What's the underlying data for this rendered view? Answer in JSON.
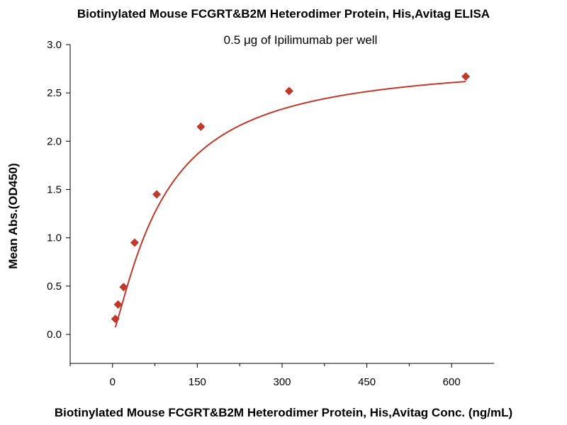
{
  "chart_data": {
    "type": "scatter",
    "title": "Biotinylated Mouse FCGRT&B2M Heterodimer Protein, His,Avitag ELISA",
    "subtitle": "0.5 μg of Ipilimumab per well",
    "xlabel": "Biotinylated Mouse FCGRT&B2M Heterodimer Protein, His,Avitag Conc. (ng/mL)",
    "ylabel": "Mean Abs.(OD450)",
    "xlim": [
      -75,
      675
    ],
    "ylim": [
      -0.3,
      3.0
    ],
    "x_ticks": [
      0,
      150,
      300,
      450,
      600
    ],
    "x_minor_ticks": [
      -75,
      75,
      225,
      375,
      525
    ],
    "y_ticks": [
      0.0,
      0.5,
      1.0,
      1.5,
      2.0,
      2.5,
      3.0
    ],
    "x_tick_labels": [
      "0",
      "150",
      "300",
      "450",
      "600"
    ],
    "y_tick_labels": [
      "0.0",
      "0.5",
      "1.0",
      "1.5",
      "2.0",
      "2.5",
      "3.0"
    ],
    "grid": false,
    "legend": "none",
    "marker_color": "#c0392b",
    "line_color": "#c0392b",
    "series": [
      {
        "x": [
          4.9,
          9.8,
          19.5,
          39.1,
          78.1,
          156.3,
          312.5,
          625
        ],
        "y": [
          0.16,
          0.31,
          0.49,
          0.95,
          1.45,
          2.15,
          2.52,
          2.67
        ]
      }
    ],
    "fit_curve": {
      "type": "4PL",
      "bottom": 0.0,
      "top": 2.85,
      "ec50": 90,
      "hill": 1.25
    }
  }
}
